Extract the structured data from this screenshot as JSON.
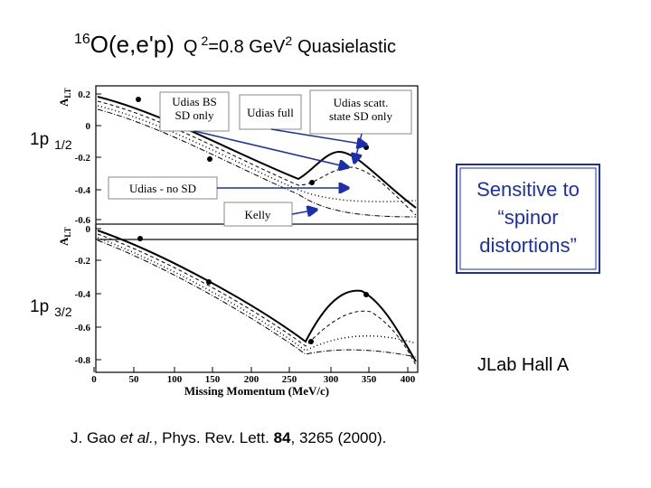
{
  "title": {
    "mass": "16",
    "reaction": "O(e,e'p)",
    "q": "Q",
    "q_exp": "2",
    "value": "=0.8 GeV",
    "unit_exp": "2",
    "kind": "Quasielastic"
  },
  "panels": [
    {
      "label": "1p",
      "sub": "1/2",
      "axis": "A",
      "axis_sub": "LT",
      "yticks": [
        "0.2",
        "0",
        "-0.2",
        "-0.4",
        "-0.6"
      ]
    },
    {
      "label": "1p",
      "sub": "3/2",
      "axis": "A",
      "axis_sub": "LT",
      "yticks": [
        "0",
        "-0.2",
        "-0.4",
        "-0.6",
        "-0.8"
      ]
    }
  ],
  "xticks": [
    "0",
    "50",
    "100",
    "150",
    "200",
    "250",
    "300",
    "350",
    "400"
  ],
  "xlabel": "Missing Momentum (MeV/c)",
  "callouts": [
    {
      "lines": [
        "Udias BS",
        "SD only"
      ]
    },
    {
      "lines": [
        "Udias full"
      ]
    },
    {
      "lines": [
        "Udias scatt.",
        "state SD only"
      ]
    },
    {
      "lines": [
        "Udias - no SD"
      ]
    },
    {
      "lines": [
        "Kelly"
      ]
    }
  ],
  "note": {
    "lines": [
      "Sensitive to",
      "“spinor",
      "distortions”"
    ]
  },
  "lab": "JLab Hall A",
  "citation": {
    "authors": "J. Gao ",
    "etal": "et al.",
    "journal": ", Phys. Rev. Lett. ",
    "volume": "84",
    "rest": ", 3265 (2000)."
  }
}
